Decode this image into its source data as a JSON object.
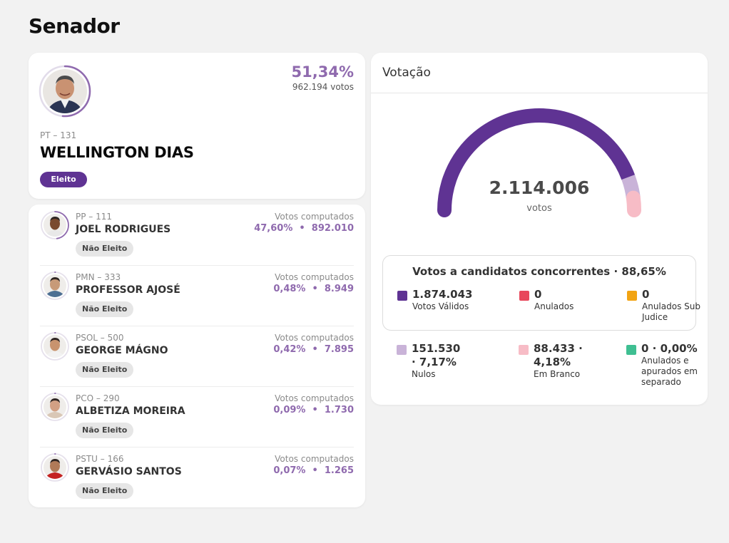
{
  "page": {
    "title": "Senador"
  },
  "winner": {
    "party": "PT – 131",
    "name": "WELLINGTON DIAS",
    "badge": "Eleito",
    "pct": "51,34%",
    "votes": "962.194 votos",
    "progress": 0.5134
  },
  "candidates": [
    {
      "party": "PP – 111",
      "name": "JOEL RODRIGUES",
      "tag": "Não Eleito",
      "votes_label": "Votos computados",
      "pct": "47,60%",
      "votes": "892.010",
      "progress": 0.476,
      "skin": "#7a4a2e",
      "shirt": "#e8e8e8"
    },
    {
      "party": "PMN – 333",
      "name": "PROFESSOR AJOSÉ",
      "tag": "Não Eleito",
      "votes_label": "Votos computados",
      "pct": "0,48%",
      "votes": "8.949",
      "progress": 0.0048,
      "skin": "#c79a78",
      "shirt": "#4d6f93"
    },
    {
      "party": "PSOL – 500",
      "name": "GEORGE MÁGNO",
      "tag": "Não Eleito",
      "votes_label": "Votos computados",
      "pct": "0,42%",
      "votes": "7.895",
      "progress": 0.0042,
      "skin": "#c8936e",
      "shirt": "#f2f2f2"
    },
    {
      "party": "PCO – 290",
      "name": "ALBETIZA MOREIRA",
      "tag": "Não Eleito",
      "votes_label": "Votos computados",
      "pct": "0,09%",
      "votes": "1.730",
      "progress": 0.0009,
      "skin": "#d2a084",
      "shirt": "#d9c7b6"
    },
    {
      "party": "PSTU – 166",
      "name": "GERVÁSIO SANTOS",
      "tag": "Não Eleito",
      "votes_label": "Votos computados",
      "pct": "0,07%",
      "votes": "1.265",
      "progress": 0.0007,
      "skin": "#b07a58",
      "shirt": "#c42222"
    }
  ],
  "votacao": {
    "title": "Votação",
    "total": "2.114.006",
    "unit": "votos",
    "gauge_fractions": {
      "valid": 0.8865,
      "null": 0.0717,
      "blank": 0.0418
    },
    "box_title": "Votos a candidatos concorrentes · 88,65%",
    "stats_top": [
      {
        "value": "1.874.043",
        "label": "Votos Válidos",
        "color": "#5f3393"
      },
      {
        "value": "0",
        "label": "Anulados",
        "color": "#e8475b"
      },
      {
        "value": "0",
        "label": "Anulados Sub Judice",
        "color": "#f2a413"
      }
    ],
    "stats_bottom": [
      {
        "value": "151.530 · 7,17%",
        "label": "Nulos",
        "color": "#c9b3d8"
      },
      {
        "value": "88.433 · 4,18%",
        "label": "Em Branco",
        "color": "#f7bcc6"
      },
      {
        "value": "0 · 0,00%",
        "label": "Anulados e apurados em separado",
        "color": "#3fbf92"
      }
    ]
  },
  "colors": {
    "accent": "#5f3393",
    "accent_light": "#8f6aae",
    "null": "#c9b3d8",
    "blank": "#f7bcc6"
  }
}
